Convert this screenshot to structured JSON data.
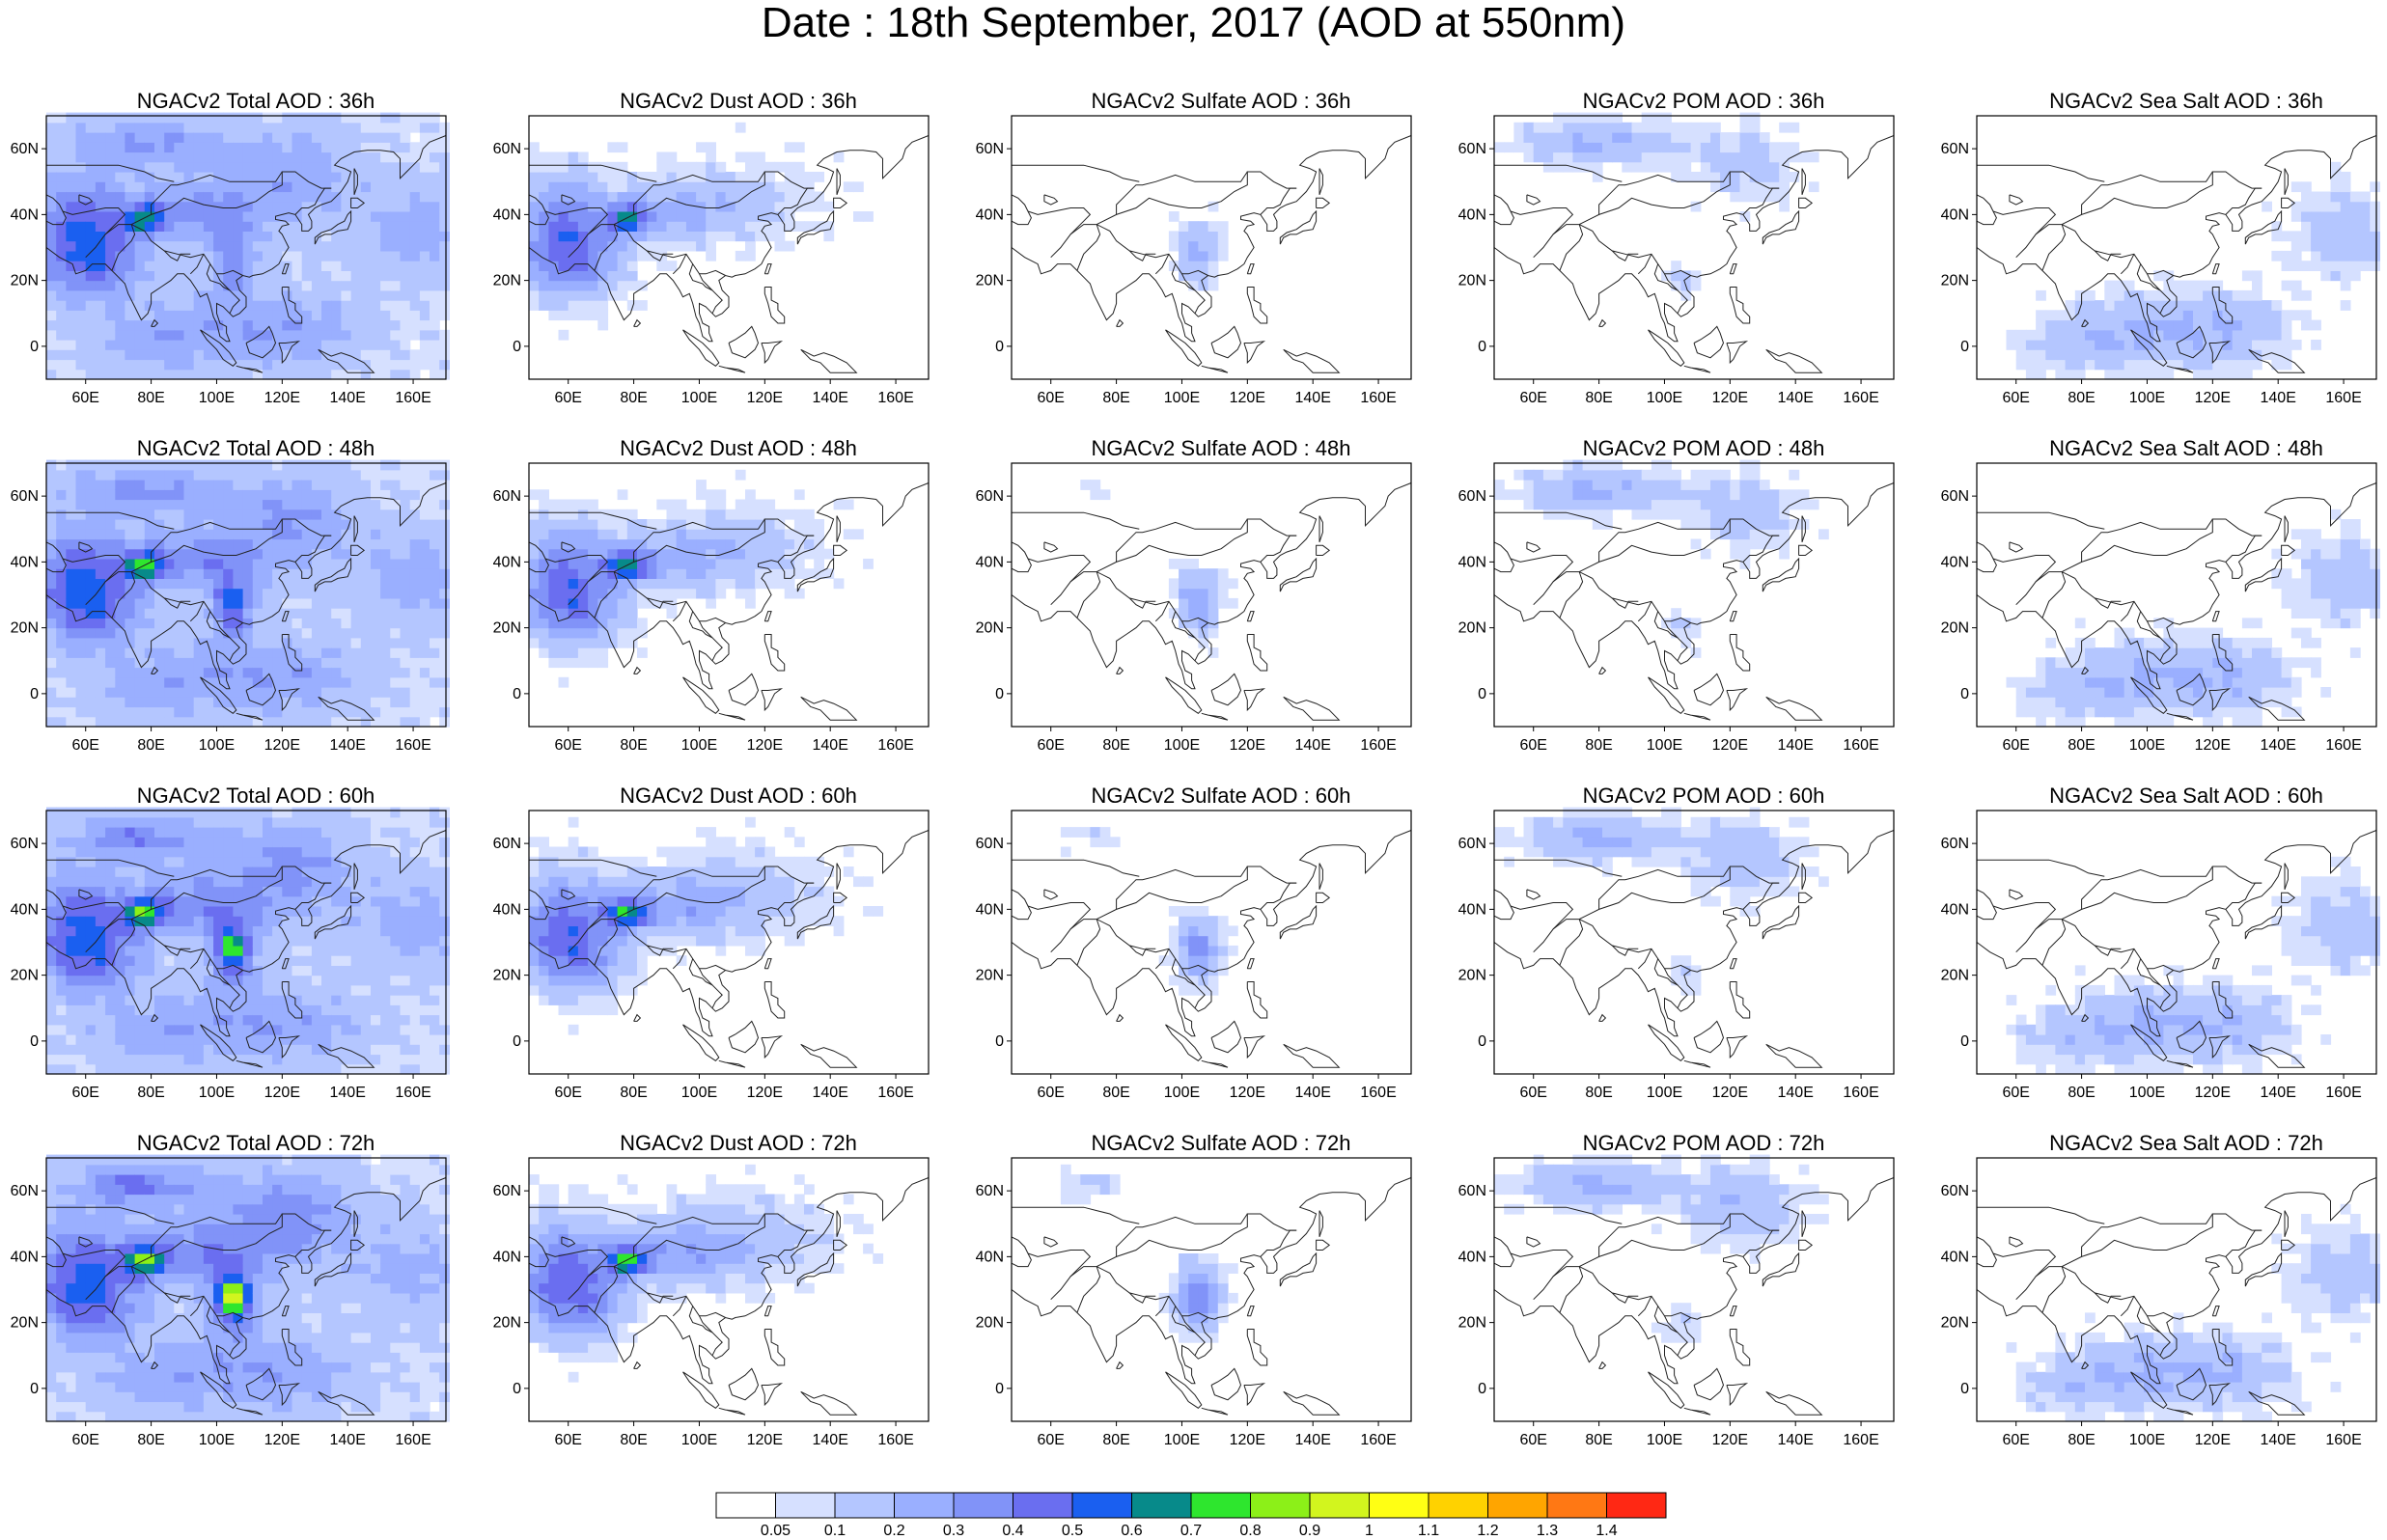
{
  "page": {
    "title": "Date : 18th September, 2017 (AOD at 550nm)"
  },
  "axes": {
    "x_ticks": [
      "60E",
      "80E",
      "100E",
      "120E",
      "140E",
      "160E"
    ],
    "x_values": [
      60,
      80,
      100,
      120,
      140,
      160
    ],
    "y_ticks": [
      "60N",
      "40N",
      "20N",
      "0"
    ],
    "y_values": [
      60,
      40,
      20,
      0
    ],
    "lon_range": [
      48,
      170
    ],
    "lat_range": [
      -10,
      70
    ]
  },
  "panels": [
    {
      "title": "NGACv2 Total AOD : 36h",
      "species": "total",
      "hour": 36
    },
    {
      "title": "NGACv2 Dust AOD : 36h",
      "species": "dust",
      "hour": 36
    },
    {
      "title": "NGACv2 Sulfate AOD : 36h",
      "species": "sulfate",
      "hour": 36
    },
    {
      "title": "NGACv2 POM AOD : 36h",
      "species": "pom",
      "hour": 36
    },
    {
      "title": "NGACv2 Sea Salt AOD : 36h",
      "species": "seasalt",
      "hour": 36
    },
    {
      "title": "NGACv2 Total AOD : 48h",
      "species": "total",
      "hour": 48
    },
    {
      "title": "NGACv2 Dust AOD : 48h",
      "species": "dust",
      "hour": 48
    },
    {
      "title": "NGACv2 Sulfate AOD : 48h",
      "species": "sulfate",
      "hour": 48
    },
    {
      "title": "NGACv2 POM AOD : 48h",
      "species": "pom",
      "hour": 48
    },
    {
      "title": "NGACv2 Sea Salt AOD : 48h",
      "species": "seasalt",
      "hour": 48
    },
    {
      "title": "NGACv2 Total AOD : 60h",
      "species": "total",
      "hour": 60
    },
    {
      "title": "NGACv2 Dust AOD : 60h",
      "species": "dust",
      "hour": 60
    },
    {
      "title": "NGACv2 Sulfate AOD : 60h",
      "species": "sulfate",
      "hour": 60
    },
    {
      "title": "NGACv2 POM AOD : 60h",
      "species": "pom",
      "hour": 60
    },
    {
      "title": "NGACv2 Sea Salt AOD : 60h",
      "species": "seasalt",
      "hour": 60
    },
    {
      "title": "NGACv2 Total AOD : 72h",
      "species": "total",
      "hour": 72
    },
    {
      "title": "NGACv2 Dust AOD : 72h",
      "species": "dust",
      "hour": 72
    },
    {
      "title": "NGACv2 Sulfate AOD : 72h",
      "species": "sulfate",
      "hour": 72
    },
    {
      "title": "NGACv2 POM AOD : 72h",
      "species": "pom",
      "hour": 72
    },
    {
      "title": "NGACv2 Sea Salt  AOD : 72h",
      "species": "seasalt",
      "hour": 72
    }
  ],
  "colorbar": {
    "labels": [
      "0.05",
      "0.1",
      "0.2",
      "0.3",
      "0.4",
      "0.5",
      "0.6",
      "0.7",
      "0.8",
      "0.9",
      "1",
      "1.1",
      "1.2",
      "1.3",
      "1.4"
    ],
    "colors": [
      "#ffffff",
      "#d6e0ff",
      "#b4c6ff",
      "#9aafff",
      "#8193f8",
      "#6a6ef0",
      "#1a5ff0",
      "#078a8a",
      "#2ee62e",
      "#8cf018",
      "#d2f51e",
      "#ffff14",
      "#ffd200",
      "#ffa500",
      "#ff7814",
      "#ff2814"
    ]
  }
}
